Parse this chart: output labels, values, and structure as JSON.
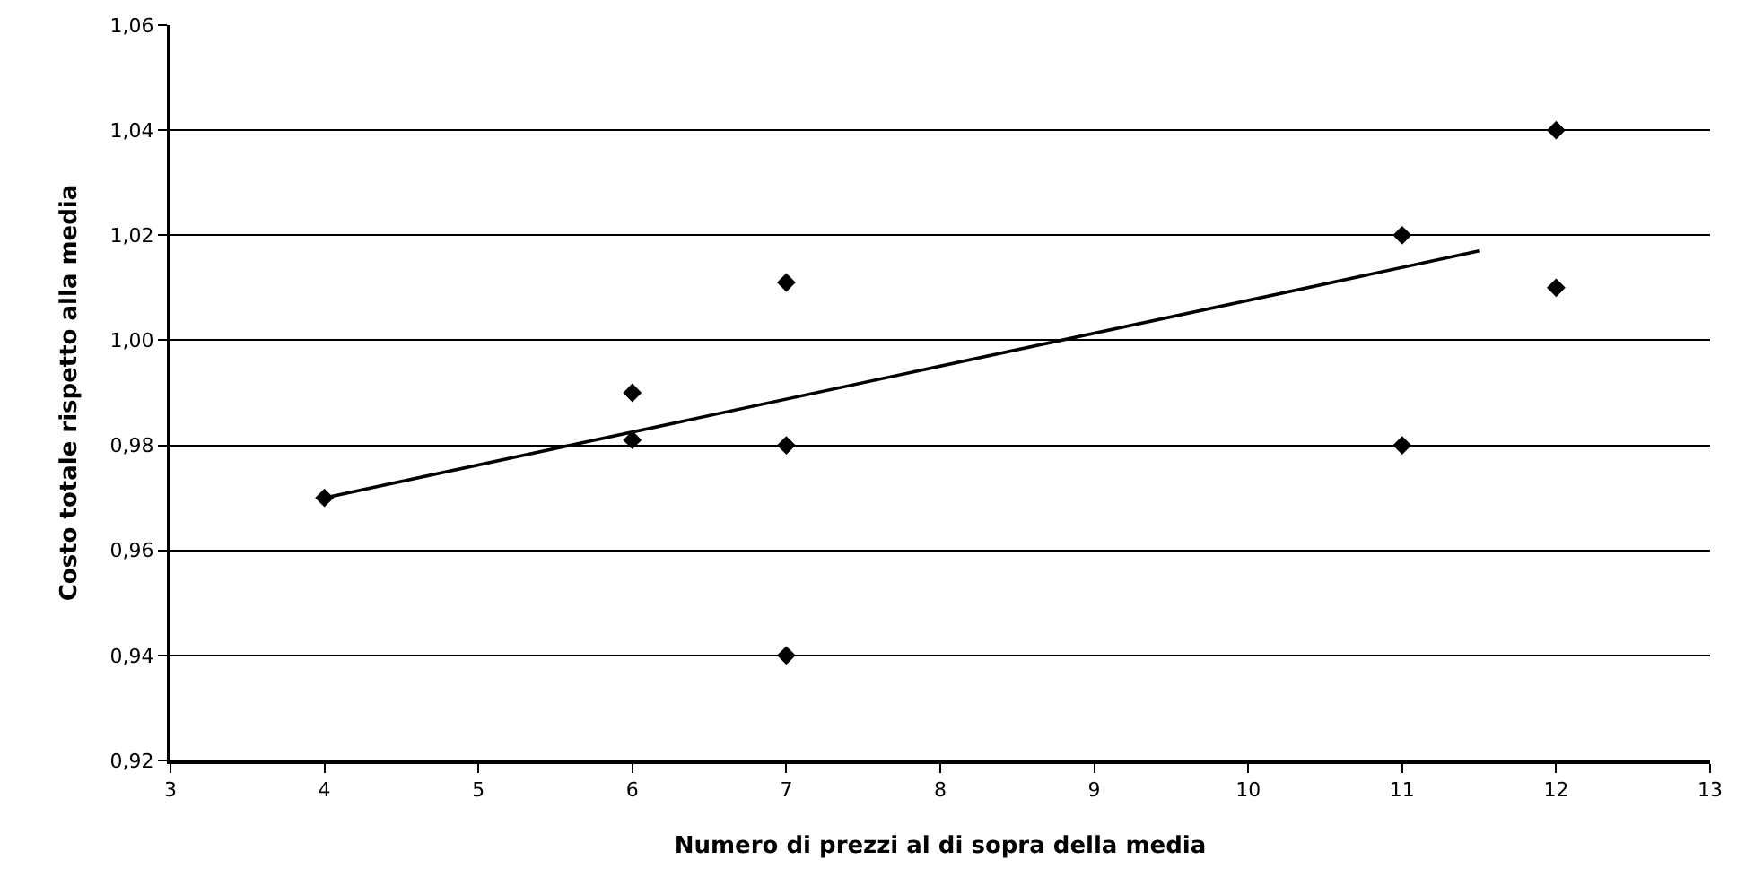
{
  "chart_data": {
    "type": "scatter",
    "xlabel": "Numero di prezzi al di sopra della media",
    "ylabel": "Costo totale rispetto alla media",
    "series": [
      {
        "color": "#000000",
        "marker": "diamond",
        "x": [
          4,
          6,
          6,
          7,
          7,
          7,
          11,
          11,
          12,
          12
        ],
        "values": [
          0.97,
          0.99,
          0.981,
          1.011,
          0.98,
          0.94,
          1.02,
          0.98,
          1.04,
          1.01
        ]
      },
      {
        "type": "line",
        "marker": "none",
        "color": "#000000",
        "x": [
          4,
          11.5
        ],
        "values": [
          0.97,
          1.017
        ]
      }
    ],
    "grid": "y",
    "legend": false,
    "xlim": [
      3,
      13
    ],
    "xticks": [
      3,
      4,
      5,
      6,
      7,
      8,
      9,
      10,
      11,
      12,
      13
    ],
    "ylim": [
      0.92,
      1.06
    ],
    "yticks": [
      {
        "value": 0.92,
        "label": "0,92"
      },
      {
        "value": 0.94,
        "label": "0,94"
      },
      {
        "value": 0.96,
        "label": "0,96"
      },
      {
        "value": 0.98,
        "label": "0,98"
      },
      {
        "value": 1.0,
        "label": "1,00"
      },
      {
        "value": 1.02,
        "label": "1,02"
      },
      {
        "value": 1.04,
        "label": "1,04"
      },
      {
        "value": 1.06,
        "label": "1,06"
      }
    ]
  }
}
